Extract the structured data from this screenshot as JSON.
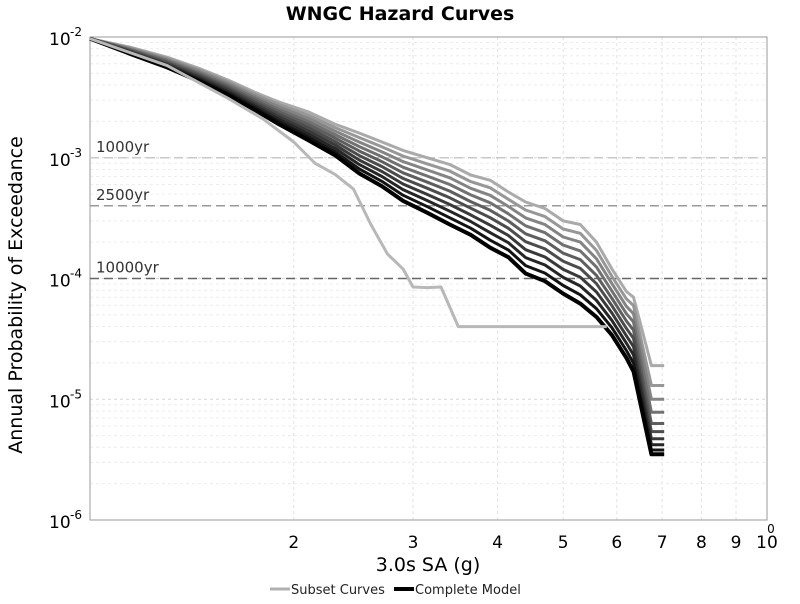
{
  "chart_data": {
    "type": "line",
    "title": "WNGC Hazard Curves",
    "xlabel": "3.0s SA (g)",
    "ylabel": "Annual Probability of Exceedance",
    "x_scale": "log",
    "y_scale": "log",
    "xlim": [
      1,
      10
    ],
    "ylim": [
      1e-06,
      0.01
    ],
    "x_ticks": [
      {
        "value": 2,
        "label": "2"
      },
      {
        "value": 3,
        "label": "3"
      },
      {
        "value": 4,
        "label": "4"
      },
      {
        "value": 5,
        "label": "5"
      },
      {
        "value": 6,
        "label": "6"
      },
      {
        "value": 7,
        "label": "7"
      },
      {
        "value": 8,
        "label": "8"
      },
      {
        "value": 9,
        "label": "9"
      },
      {
        "value": 10,
        "label": "10"
      }
    ],
    "x_corner_label": "0",
    "y_ticks": [
      {
        "value": 0.01,
        "base": "10",
        "exp": "-2"
      },
      {
        "value": 0.001,
        "base": "10",
        "exp": "-3"
      },
      {
        "value": 0.0001,
        "base": "10",
        "exp": "-4"
      },
      {
        "value": 1e-05,
        "base": "10",
        "exp": "-5"
      },
      {
        "value": 1e-06,
        "base": "10",
        "exp": "-6"
      }
    ],
    "grid": true,
    "return_periods": [
      {
        "label": "1000yr",
        "value": 0.001,
        "color": "#c8c8c8"
      },
      {
        "label": "2500yr",
        "value": 0.0004,
        "color": "#999999"
      },
      {
        "label": "10000yr",
        "value": 0.0001,
        "color": "#666666"
      }
    ],
    "curves": {
      "x": [
        1.0,
        1.15,
        1.3,
        1.45,
        1.6,
        1.75,
        1.9,
        2.1,
        2.3,
        2.5,
        2.7,
        2.9,
        3.15,
        3.4,
        3.65,
        3.9,
        4.15,
        4.4,
        4.7,
        5.0,
        5.3,
        5.6,
        5.9,
        6.2,
        6.35
      ],
      "top": [
        0.0097,
        0.0082,
        0.0068,
        0.0055,
        0.0044,
        0.0035,
        0.0029,
        0.0024,
        0.0019,
        0.0016,
        0.00135,
        0.00115,
        0.001,
        0.00088,
        0.00072,
        0.00065,
        0.00052,
        0.00043,
        0.00038,
        0.0003,
        0.00028,
        0.0002,
        0.00012,
        7.8e-05,
        7e-05
      ],
      "bottom": [
        0.0097,
        0.0072,
        0.0056,
        0.0043,
        0.0033,
        0.0025,
        0.0019,
        0.0014,
        0.00105,
        0.00074,
        0.00058,
        0.00044,
        0.00035,
        0.00028,
        0.00023,
        0.00018,
        0.00015,
        0.00011,
        9.5e-05,
        7.5e-05,
        6.2e-05,
        4.8e-05,
        3.4e-05,
        2.2e-05,
        1.7e-05
      ],
      "drop_x": 6.75,
      "end_x": 7.05,
      "end_values": [
        1.9e-05,
        1.3e-05,
        1e-05,
        7.8e-06,
        6.3e-06,
        5.4e-06,
        4.7e-06,
        4.2e-06,
        3.8e-06,
        3.5e-06
      ],
      "count": 10
    },
    "subset_outlier": {
      "x": [
        1.0,
        1.3,
        1.6,
        1.8,
        2.0,
        2.15,
        2.3,
        2.45,
        2.6,
        2.75,
        2.9,
        3.0,
        3.15,
        3.3,
        3.5,
        3.7,
        4.0,
        4.5,
        5.0,
        5.5,
        5.8
      ],
      "y": [
        0.0097,
        0.0058,
        0.0031,
        0.0021,
        0.00135,
        0.0009,
        0.00073,
        0.00055,
        0.00028,
        0.00016,
        0.00012,
        8.5e-05,
        8.4e-05,
        8.5e-05,
        4e-05,
        4e-05,
        4e-05,
        4e-05,
        4e-05,
        4e-05,
        4e-05
      ]
    },
    "legend": {
      "placement": "bottom",
      "entries": [
        {
          "label": "Subset Curves",
          "color": "#b0b0b0"
        },
        {
          "label": "Complete Model",
          "color": "#000000"
        }
      ]
    }
  }
}
